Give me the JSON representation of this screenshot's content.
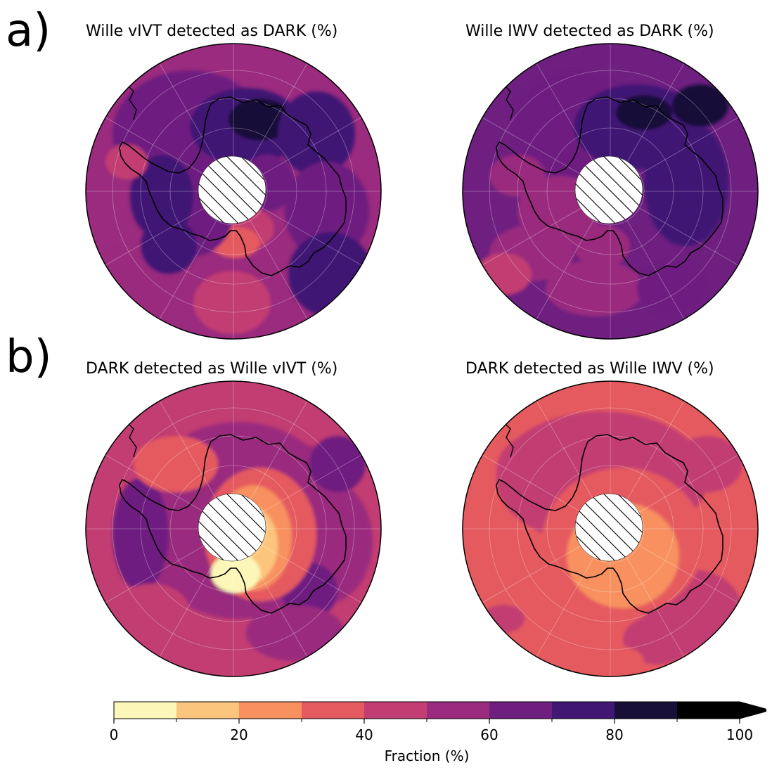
{
  "row_labels": {
    "a": "a)",
    "b": "b)"
  },
  "panels": [
    {
      "id": "a-left",
      "title": "Wille vIVT detected as DARK (%)",
      "theme": "a-vivt"
    },
    {
      "id": "a-right",
      "title": "Wille IWV detected as DARK (%)",
      "theme": "a-iwv"
    },
    {
      "id": "b-left",
      "title": "DARK detected as Wille vIVT (%)",
      "theme": "b-vivt"
    },
    {
      "id": "b-right",
      "title": "DARK detected as Wille IWV (%)",
      "theme": "b-iwv"
    }
  ],
  "colorbar": {
    "label": "Fraction (%)",
    "ticks": [
      "0",
      "20",
      "40",
      "60",
      "80",
      "100"
    ],
    "bins": [
      0,
      10,
      20,
      30,
      40,
      50,
      60,
      70,
      80,
      90,
      100
    ],
    "colors": [
      "#fcf7b8",
      "#fcc57e",
      "#f8915f",
      "#e55a5f",
      "#c23d72",
      "#9a2b7e",
      "#6e1f80",
      "#401874",
      "#170f38",
      "#000000"
    ],
    "extend": "max"
  },
  "map_style": {
    "projection": "south-polar-stereographic",
    "pole_mask": "hatched",
    "coastline_color": "#000000"
  }
}
